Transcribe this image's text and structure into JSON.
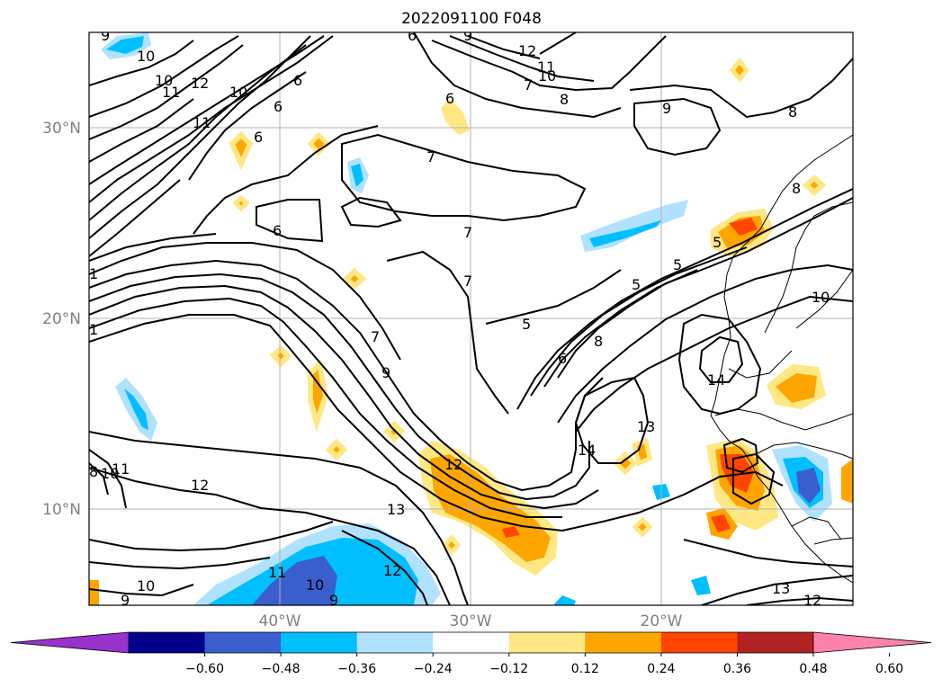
{
  "title": "2022091100 F048",
  "lat_labels": [
    "30°N",
    "20°N",
    "10°N"
  ],
  "lon_labels": [
    "40°W",
    "30°W",
    "20°W"
  ],
  "colorbar": {
    "ticks": [
      "−0.60",
      "−0.48",
      "−0.36",
      "−0.24",
      "−0.12",
      "0.12",
      "0.24",
      "0.36",
      "0.48",
      "0.60"
    ],
    "colors": [
      "#9932cc",
      "#00008b",
      "#3a5fcd",
      "#00bfff",
      "#b0e2ff",
      "#ffffff",
      "#ffe884",
      "#ffa500",
      "#ff4500",
      "#b22222",
      "#ff82ab"
    ]
  },
  "contour_labels": [
    "9",
    "10",
    "10",
    "11",
    "12",
    "10",
    "11",
    "6",
    "6",
    "6",
    "9",
    "12",
    "11",
    "7",
    "10",
    "8",
    "8",
    "9",
    "6",
    "7",
    "6",
    "6",
    "7",
    "7",
    "5",
    "8",
    "5",
    "5",
    "10",
    "7",
    "6",
    "8",
    "9",
    "5",
    "14",
    "13",
    "14",
    "12",
    "12",
    "13",
    "11",
    "10",
    "9",
    "10",
    "8",
    "10",
    "11",
    "9",
    "12",
    "13",
    "12",
    "1",
    "1"
  ],
  "shading_colors": {
    "light_blue": "#b0e2ff",
    "cyan": "#00bfff",
    "blue": "#3a5fcd",
    "yellow": "#ffe884",
    "orange": "#ffa500",
    "red": "#ff4500"
  }
}
